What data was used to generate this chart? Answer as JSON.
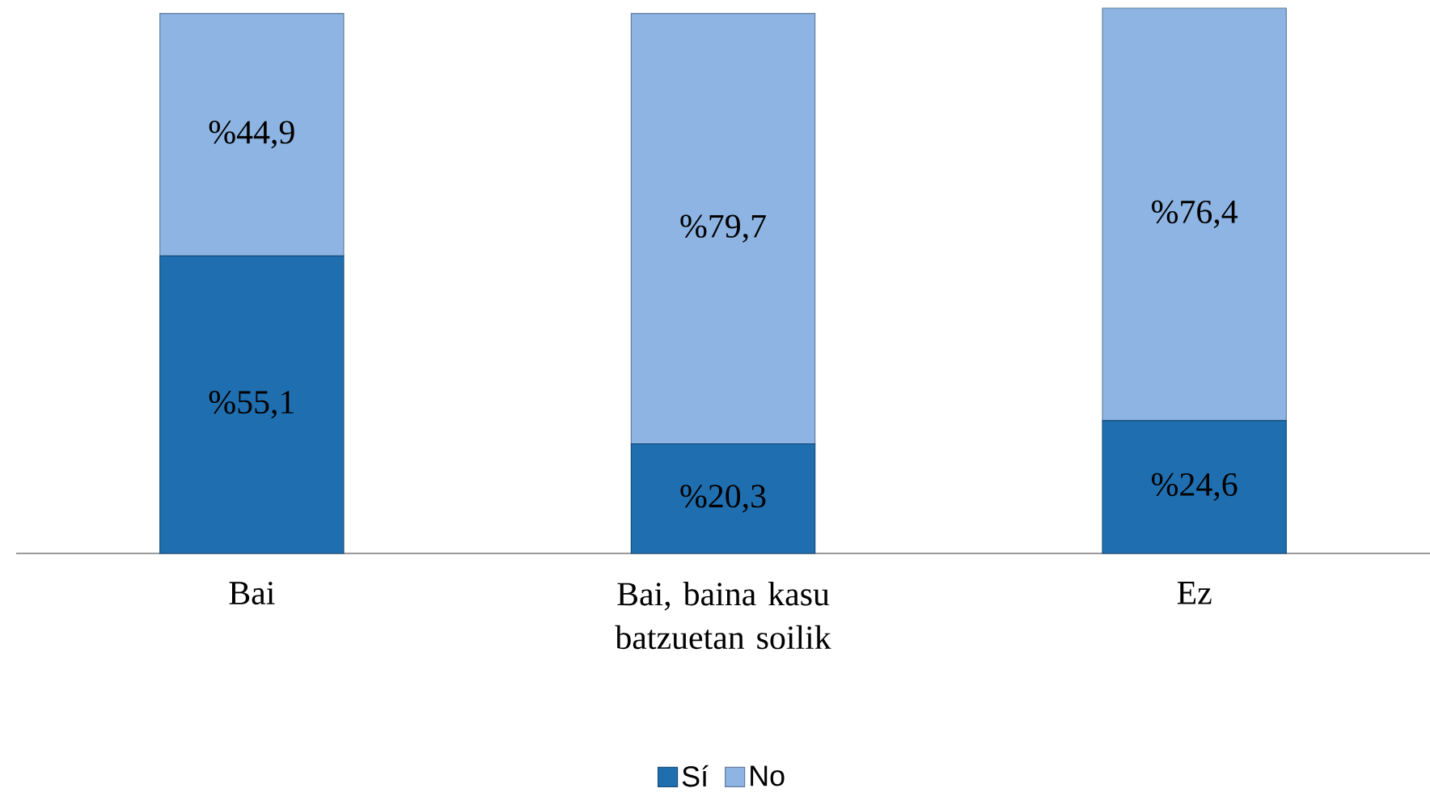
{
  "chart_data": {
    "type": "bar",
    "stacked": true,
    "categories": [
      "Bai",
      "Bai, baina kasu batzuetan soilik",
      "Ez"
    ],
    "tick_labels": "x",
    "legend": "bottom",
    "series": [
      {
        "name": "Sí",
        "color": "#1f6fb0",
        "values": [
          55.1,
          20.3,
          24.6
        ],
        "value_labels": [
          "%55,1",
          "%20,3",
          "%24,6"
        ]
      },
      {
        "name": "No",
        "color": "#8db4e2",
        "values": [
          44.9,
          79.7,
          76.4
        ],
        "value_labels": [
          "%44,9",
          "%79,7",
          "%76,4"
        ]
      }
    ]
  }
}
